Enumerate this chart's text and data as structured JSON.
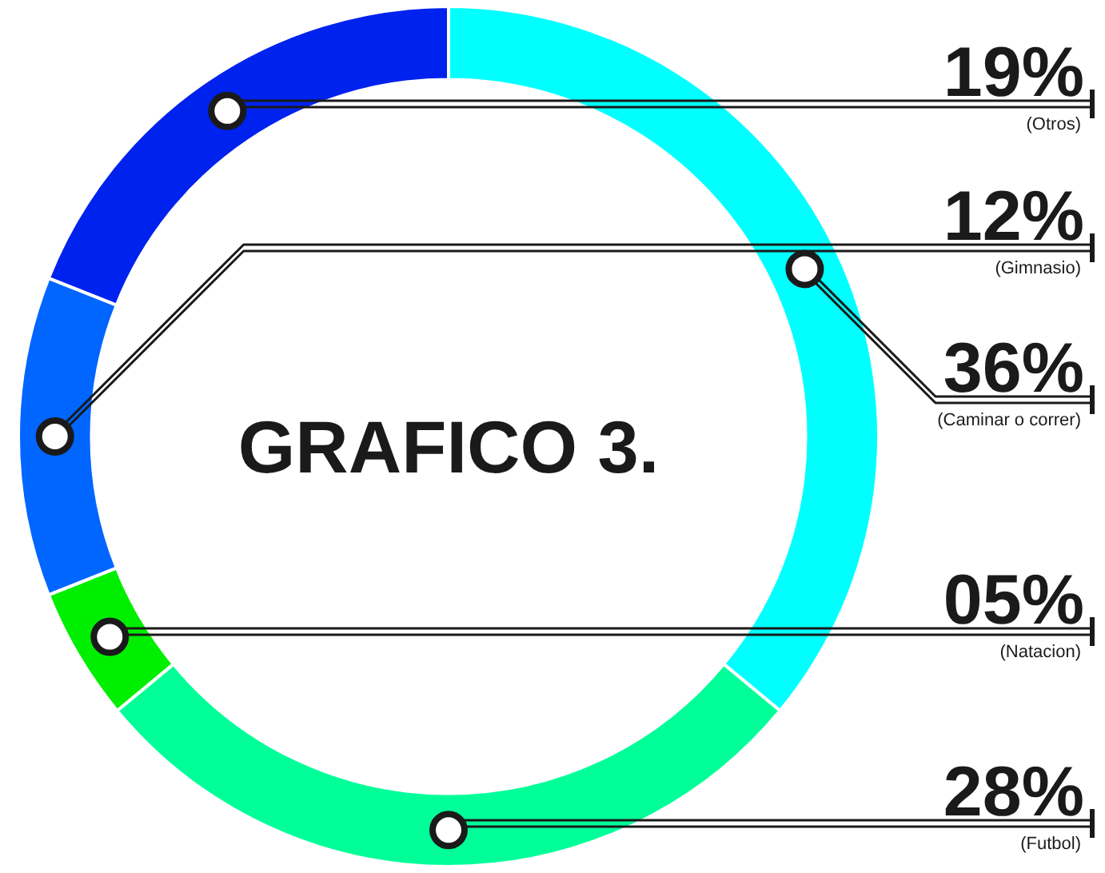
{
  "chart_data": {
    "type": "donut",
    "title": "GRAFICO 3.",
    "categories": [
      "(Caminar o correr)",
      "(Futbol)",
      "(Natacion)",
      "(Gimnasio)",
      "(Otros)"
    ],
    "values": [
      36,
      28,
      5,
      12,
      19
    ],
    "colors": [
      "#00ffff",
      "#00ff99",
      "#00ee00",
      "#0066ff",
      "#0022ee"
    ],
    "value_labels": [
      "36%",
      "28%",
      "05%",
      "12%",
      "19%"
    ]
  }
}
